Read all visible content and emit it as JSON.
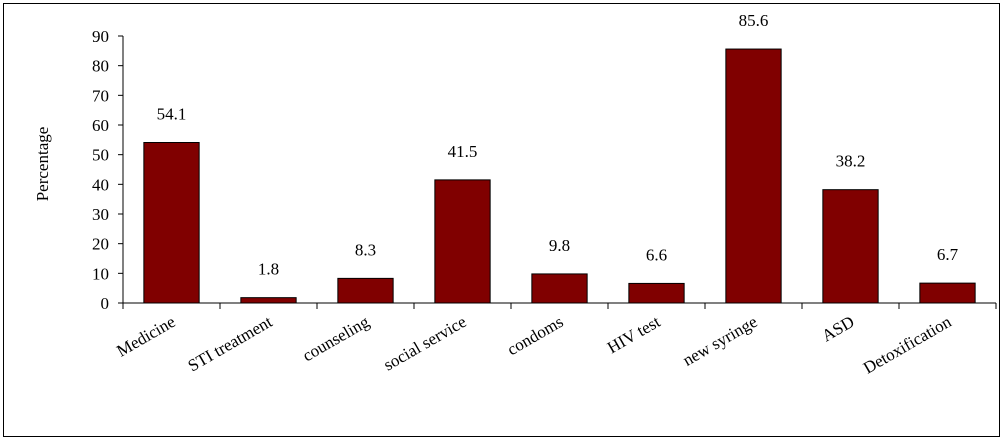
{
  "colors": {
    "bar_fill": "#800000",
    "bar_stroke": "#000000",
    "axis": "#000000",
    "background": "#ffffff"
  },
  "chart_data": {
    "type": "bar",
    "title": "",
    "xlabel": "",
    "ylabel": "Percentage",
    "ylim": [
      0,
      90
    ],
    "yticks": [
      0,
      10,
      20,
      30,
      40,
      50,
      60,
      70,
      80,
      90
    ],
    "ytick_labels": [
      "0",
      "10",
      "20",
      "30",
      "40",
      "50",
      "60",
      "70",
      "80",
      "90"
    ],
    "grid": false,
    "legend": "none",
    "categories": [
      "Medicine",
      "STI treatment",
      "counseling",
      "social service",
      "condoms",
      "HIV test",
      "new syringe",
      "ASD",
      "Detoxification"
    ],
    "values": [
      54.1,
      1.8,
      8.3,
      41.5,
      9.8,
      6.6,
      85.6,
      38.2,
      6.7
    ],
    "data_labels": [
      "54.1",
      "1.8",
      "8.3",
      "41.5",
      "9.8",
      "6.6",
      "85.6",
      "38.2",
      "6.7"
    ]
  }
}
